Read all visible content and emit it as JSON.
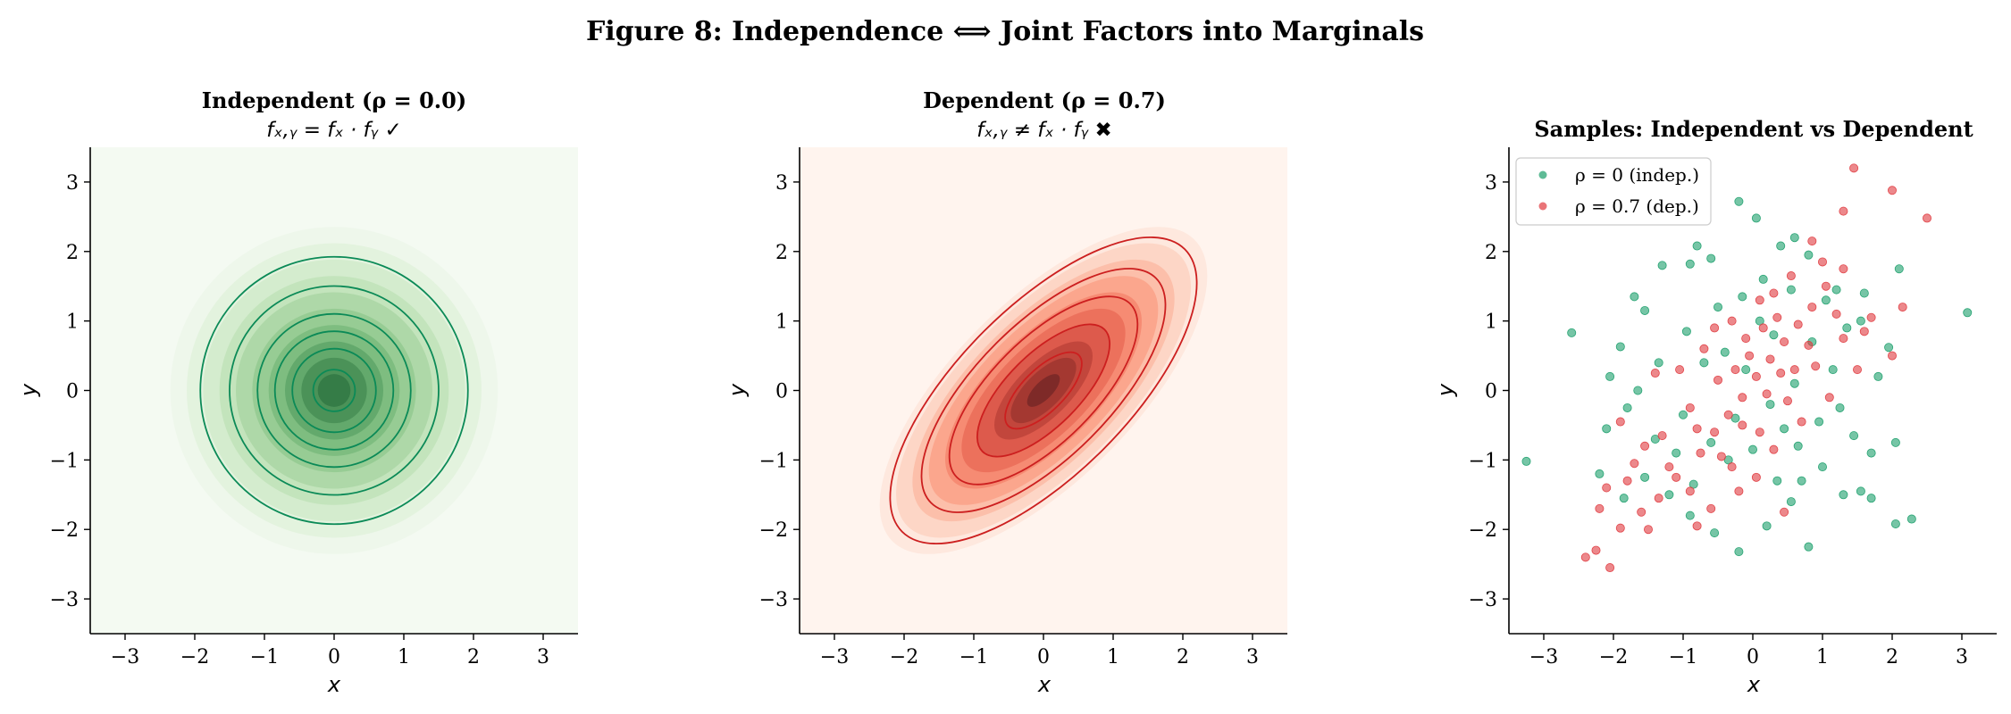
{
  "figure_title": "Figure 8: Independence ⟺ Joint Factors into Marginals",
  "panels": [
    {
      "title": "Independent (ρ = 0.0)",
      "subtitle": "fₓ,ᵧ = fₓ · fᵧ ✓",
      "xlabel": "x",
      "ylabel": "y"
    },
    {
      "title": "Dependent (ρ = 0.7)",
      "subtitle": "fₓ,ᵧ ≠ fₓ · fᵧ ✖",
      "xlabel": "x",
      "ylabel": "y"
    },
    {
      "title": "Samples: Independent vs Dependent",
      "xlabel": "x",
      "ylabel": "y"
    }
  ],
  "chart_data": [
    {
      "type": "contour",
      "distribution": "bivariate normal",
      "rho": 0.0,
      "mean": [
        0,
        0
      ],
      "std": [
        1,
        1
      ],
      "xlim": [
        -3.5,
        3.5
      ],
      "ylim": [
        -3.5,
        3.5
      ],
      "xticks": [
        -3,
        -2,
        -1,
        0,
        1,
        2,
        3
      ],
      "yticks": [
        -3,
        -2,
        -1,
        0,
        1,
        2,
        3
      ],
      "fill_colormap": "Greens",
      "line_color": "#0b8a57",
      "line_radii": [
        0.3,
        0.6,
        0.85,
        1.1,
        1.5,
        1.92
      ],
      "grid": false
    },
    {
      "type": "contour",
      "distribution": "bivariate normal",
      "rho": 0.7,
      "mean": [
        0,
        0
      ],
      "std": [
        1,
        1
      ],
      "xlim": [
        -3.5,
        3.5
      ],
      "ylim": [
        -3.5,
        3.5
      ],
      "xticks": [
        -3,
        -2,
        -1,
        0,
        1,
        2,
        3
      ],
      "yticks": [
        -3,
        -2,
        -1,
        0,
        1,
        2,
        3
      ],
      "fill_colormap": "Reds",
      "line_color": "#cc1f1f",
      "grid": false
    },
    {
      "type": "scatter",
      "xlim": [
        -3.5,
        3.5
      ],
      "ylim": [
        -3.5,
        3.5
      ],
      "xticks": [
        -3,
        -2,
        -1,
        0,
        1,
        2,
        3
      ],
      "yticks": [
        -3,
        -2,
        -1,
        0,
        1,
        2,
        3
      ],
      "legend_position": "upper-left",
      "grid": false,
      "series": [
        {
          "name": "ρ = 0 (indep.)",
          "color": "#1a9e6a",
          "points": [
            [
              -3.25,
              -1.02
            ],
            [
              -2.6,
              0.83
            ],
            [
              -2.05,
              0.2
            ],
            [
              -1.9,
              0.63
            ],
            [
              -1.7,
              1.35
            ],
            [
              -1.55,
              1.15
            ],
            [
              -1.3,
              1.8
            ],
            [
              -0.9,
              1.82
            ],
            [
              -0.8,
              2.08
            ],
            [
              -0.6,
              1.9
            ],
            [
              -0.2,
              2.72
            ],
            [
              0.05,
              2.48
            ],
            [
              0.4,
              2.08
            ],
            [
              0.6,
              2.2
            ],
            [
              0.8,
              1.95
            ],
            [
              1.2,
              1.45
            ],
            [
              1.55,
              1.0
            ],
            [
              1.95,
              0.62
            ],
            [
              2.1,
              1.75
            ],
            [
              2.05,
              -0.75
            ],
            [
              2.05,
              -1.92
            ],
            [
              2.28,
              -1.85
            ],
            [
              3.08,
              1.12
            ],
            [
              1.7,
              -1.55
            ],
            [
              1.55,
              -1.45
            ],
            [
              1.3,
              -1.5
            ],
            [
              0.8,
              -2.25
            ],
            [
              0.55,
              -1.6
            ],
            [
              0.2,
              -1.95
            ],
            [
              -0.2,
              -2.32
            ],
            [
              -0.55,
              -2.05
            ],
            [
              -0.9,
              -1.8
            ],
            [
              -1.2,
              -1.5
            ],
            [
              -1.55,
              -1.25
            ],
            [
              -2.1,
              -0.55
            ],
            [
              -1.8,
              -0.25
            ],
            [
              -1.4,
              -0.7
            ],
            [
              -1.0,
              -0.35
            ],
            [
              -0.7,
              0.4
            ],
            [
              -0.4,
              0.55
            ],
            [
              -0.1,
              0.3
            ],
            [
              0.25,
              -0.2
            ],
            [
              0.45,
              -0.55
            ],
            [
              0.65,
              -0.8
            ],
            [
              0.95,
              -0.45
            ],
            [
              1.15,
              0.3
            ],
            [
              1.35,
              0.9
            ],
            [
              1.6,
              1.4
            ],
            [
              1.8,
              0.2
            ],
            [
              1.45,
              -0.65
            ],
            [
              1.0,
              -1.1
            ],
            [
              0.35,
              -1.3
            ],
            [
              -0.35,
              -1.0
            ],
            [
              -0.85,
              -1.35
            ],
            [
              -1.35,
              0.4
            ],
            [
              -1.65,
              0.0
            ],
            [
              -0.95,
              0.85
            ],
            [
              -0.5,
              1.2
            ],
            [
              0.1,
              1.0
            ],
            [
              0.55,
              1.45
            ],
            [
              0.85,
              0.7
            ],
            [
              0.3,
              0.8
            ],
            [
              -0.25,
              -0.4
            ],
            [
              -0.6,
              -0.75
            ],
            [
              0.0,
              -0.85
            ],
            [
              0.6,
              0.1
            ],
            [
              1.25,
              -0.25
            ],
            [
              1.7,
              -0.9
            ],
            [
              -1.1,
              -0.9
            ],
            [
              -1.85,
              -1.55
            ],
            [
              -2.2,
              -1.2
            ],
            [
              0.15,
              1.6
            ],
            [
              -0.15,
              1.35
            ],
            [
              0.7,
              -1.3
            ],
            [
              1.05,
              1.3
            ]
          ]
        },
        {
          "name": "ρ = 0.7 (dep.)",
          "color": "#e0393e",
          "points": [
            [
              -2.05,
              -2.55
            ],
            [
              -2.25,
              -2.3
            ],
            [
              -2.4,
              -2.4
            ],
            [
              -2.2,
              -1.7
            ],
            [
              -1.9,
              -1.98
            ],
            [
              -1.6,
              -1.75
            ],
            [
              -1.35,
              -1.55
            ],
            [
              -1.1,
              -1.25
            ],
            [
              -0.9,
              -1.45
            ],
            [
              -0.75,
              -0.9
            ],
            [
              -0.55,
              -0.6
            ],
            [
              -0.35,
              -0.35
            ],
            [
              -0.15,
              -0.1
            ],
            [
              0.05,
              0.2
            ],
            [
              0.25,
              0.45
            ],
            [
              0.45,
              0.7
            ],
            [
              0.65,
              0.95
            ],
            [
              0.85,
              1.2
            ],
            [
              1.05,
              1.5
            ],
            [
              1.3,
              1.75
            ],
            [
              1.45,
              3.2
            ],
            [
              2.0,
              2.88
            ],
            [
              2.5,
              2.48
            ],
            [
              1.3,
              2.58
            ],
            [
              0.85,
              2.15
            ],
            [
              0.3,
              1.4
            ],
            [
              -0.1,
              0.75
            ],
            [
              -0.5,
              0.15
            ],
            [
              -0.9,
              -0.25
            ],
            [
              -1.3,
              -0.65
            ],
            [
              -1.7,
              -1.05
            ],
            [
              -2.1,
              -1.4
            ],
            [
              -1.5,
              -2.0
            ],
            [
              -0.8,
              -1.95
            ],
            [
              -0.3,
              -1.1
            ],
            [
              0.1,
              -0.6
            ],
            [
              0.5,
              -0.15
            ],
            [
              0.9,
              0.35
            ],
            [
              1.3,
              0.75
            ],
            [
              1.7,
              1.05
            ],
            [
              2.15,
              1.2
            ],
            [
              2.0,
              0.5
            ],
            [
              1.5,
              0.3
            ],
            [
              1.1,
              -0.1
            ],
            [
              0.7,
              -0.45
            ],
            [
              0.3,
              -0.85
            ],
            [
              -0.2,
              -1.45
            ],
            [
              -0.6,
              -1.7
            ],
            [
              -1.2,
              -1.1
            ],
            [
              -1.8,
              -1.3
            ],
            [
              -1.05,
              0.3
            ],
            [
              -0.7,
              0.6
            ],
            [
              -0.3,
              1.0
            ],
            [
              0.1,
              1.3
            ],
            [
              0.55,
              1.65
            ],
            [
              1.0,
              1.85
            ],
            [
              0.6,
              0.3
            ],
            [
              0.2,
              -0.05
            ],
            [
              -0.15,
              -0.5
            ],
            [
              -0.45,
              -0.95
            ],
            [
              0.35,
              1.05
            ],
            [
              0.8,
              0.65
            ],
            [
              1.2,
              1.1
            ],
            [
              -0.55,
              0.9
            ],
            [
              -1.4,
              0.25
            ],
            [
              -1.9,
              -0.45
            ],
            [
              0.05,
              -1.25
            ],
            [
              0.45,
              -1.75
            ],
            [
              1.6,
              0.85
            ],
            [
              -0.05,
              0.5
            ],
            [
              0.15,
              0.9
            ],
            [
              -0.25,
              0.3
            ],
            [
              0.4,
              0.25
            ],
            [
              -0.8,
              -0.55
            ],
            [
              -1.55,
              -0.8
            ]
          ]
        }
      ]
    }
  ]
}
